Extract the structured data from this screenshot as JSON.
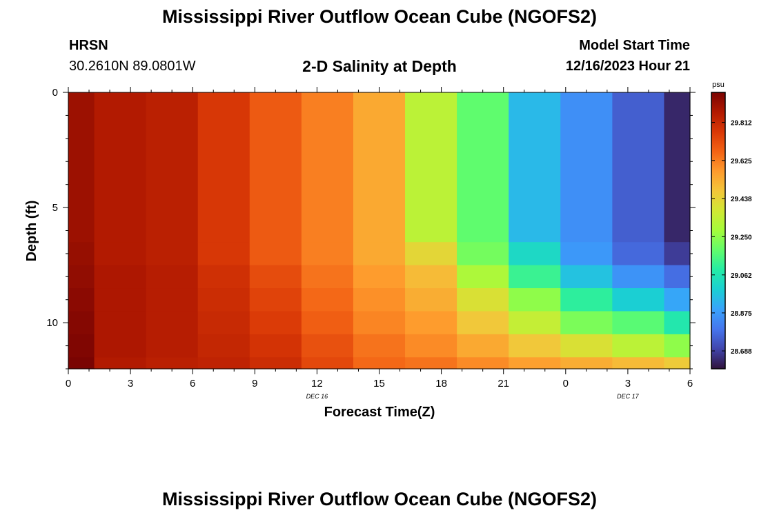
{
  "header": {
    "title": "Mississippi River Outflow Ocean Cube (NGOFS2)",
    "station_id": "HRSN",
    "station_coords": "30.2610N  89.0801W",
    "subtitle": "2-D Salinity at Depth",
    "model_start_label": "Model Start Time",
    "model_start_value": "12/16/2023 Hour 21"
  },
  "footer": {
    "title": "Mississippi River Outflow Ocean Cube (NGOFS2)"
  },
  "colors": {
    "colormap": [
      "#30123b",
      "#4145ab",
      "#4675ed",
      "#39a2fc",
      "#1bcfd4",
      "#24eca6",
      "#61fc6c",
      "#a4fc3b",
      "#d1e834",
      "#f3c63a",
      "#fe9b2d",
      "#f36315",
      "#d93806",
      "#b11901",
      "#7a0402"
    ]
  },
  "chart_data": {
    "type": "heatmap",
    "title": "2-D Salinity at Depth",
    "xlabel": "Forecast Time(Z)",
    "ylabel": "Depth (ft)",
    "x_tick_labels": [
      "0",
      "3",
      "6",
      "9",
      "12",
      "15",
      "18",
      "21",
      "0",
      "3",
      "6"
    ],
    "x_date_labels": [
      {
        "label": "DEC 16",
        "tick": "12"
      },
      {
        "label": "DEC 17",
        "tick": "3"
      }
    ],
    "xlim": [
      0,
      30
    ],
    "y_tick_labels": [
      "0",
      "5",
      "10"
    ],
    "ylim": [
      0,
      12
    ],
    "y_inverted": true,
    "colorbar": {
      "unit": "psu",
      "ticks": [
        "29.812",
        "29.625",
        "29.438",
        "29.250",
        "29.062",
        "28.875",
        "28.688"
      ],
      "min": 28.6,
      "max": 29.96
    },
    "time_edges": [
      0,
      1.25,
      3.75,
      6.25,
      8.75,
      11.25,
      13.75,
      16.25,
      18.75,
      21.25,
      23.75,
      26.25,
      28.75,
      30
    ],
    "depth_edges": [
      0,
      6.5,
      7.5,
      8.5,
      9.5,
      10.5,
      11.5,
      12
    ],
    "salinity_columns": [
      [
        29.9,
        29.91,
        29.92,
        29.93,
        29.94,
        29.95,
        29.96
      ],
      [
        29.86,
        29.86,
        29.87,
        29.87,
        29.87,
        29.87,
        29.86
      ],
      [
        29.84,
        29.84,
        29.85,
        29.85,
        29.85,
        29.85,
        29.84
      ],
      [
        29.77,
        29.77,
        29.79,
        29.8,
        29.81,
        29.82,
        29.83
      ],
      [
        29.69,
        29.69,
        29.72,
        29.74,
        29.76,
        29.78,
        29.8
      ],
      [
        29.62,
        29.62,
        29.64,
        29.66,
        29.68,
        29.71,
        29.73
      ],
      [
        29.54,
        29.54,
        29.57,
        29.59,
        29.61,
        29.64,
        29.66
      ],
      [
        29.33,
        29.43,
        29.5,
        29.53,
        29.57,
        29.6,
        29.64
      ],
      [
        29.18,
        29.21,
        29.3,
        29.4,
        29.47,
        29.54,
        29.6
      ],
      [
        28.94,
        29.02,
        29.12,
        29.25,
        29.35,
        29.47,
        29.56
      ],
      [
        28.85,
        28.87,
        28.96,
        29.1,
        29.22,
        29.4,
        29.53
      ],
      [
        28.75,
        28.77,
        28.86,
        28.99,
        29.17,
        29.33,
        29.5
      ],
      [
        28.64,
        28.68,
        28.78,
        28.9,
        29.07,
        29.25,
        29.46
      ]
    ]
  }
}
